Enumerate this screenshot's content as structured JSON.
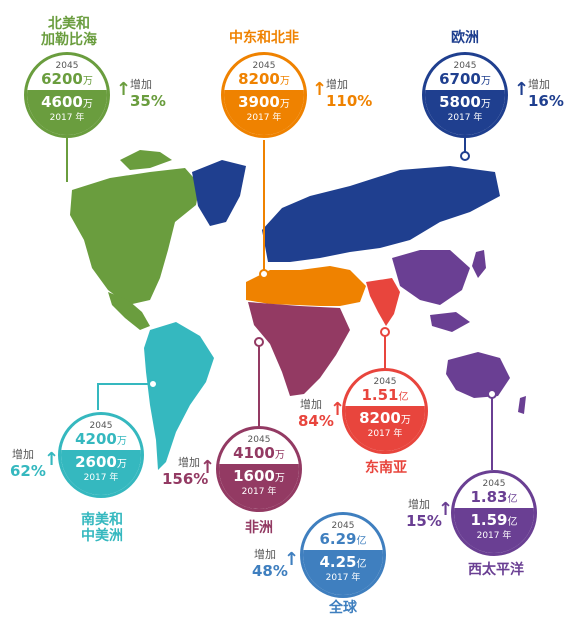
{
  "colors": {
    "north_america": "#6a9d3e",
    "middle_east": "#ef8200",
    "europe": "#1f3f8f",
    "south_america": "#35b8bf",
    "africa": "#933a63",
    "south_asia": "#e8453d",
    "pacific": "#6a3f93",
    "global": "#3f7fbf"
  },
  "common": {
    "year_2045": "2045",
    "year_2017": "2017 年",
    "growth_label": "增加"
  },
  "regions": {
    "north_america": {
      "name_line1": "北美和",
      "name_line2": "加勒比海",
      "val_2045": "6200",
      "unit_2045": "万",
      "val_2017": "4600",
      "unit_2017": "万",
      "growth": "35%"
    },
    "middle_east": {
      "name_line1": "中东和北非",
      "val_2045": "8200",
      "unit_2045": "万",
      "val_2017": "3900",
      "unit_2017": "万",
      "growth": "110%"
    },
    "europe": {
      "name_line1": "欧洲",
      "val_2045": "6700",
      "unit_2045": "万",
      "val_2017": "5800",
      "unit_2017": "万",
      "growth": "16%"
    },
    "south_america": {
      "name_line1": "南美和",
      "name_line2": "中美洲",
      "val_2045": "4200",
      "unit_2045": "万",
      "val_2017": "2600",
      "unit_2017": "万",
      "growth": "62%"
    },
    "africa": {
      "name_line1": "非洲",
      "val_2045": "4100",
      "unit_2045": "万",
      "val_2017": "1600",
      "unit_2017": "万",
      "growth": "156%"
    },
    "south_asia": {
      "name_line1": "东南亚",
      "val_2045": "1.51",
      "unit_2045": "亿",
      "val_2017": "8200",
      "unit_2017": "万",
      "growth": "84%"
    },
    "pacific": {
      "name_line1": "西太平洋",
      "val_2045": "1.83",
      "unit_2045": "亿",
      "val_2017": "1.59",
      "unit_2017": "亿",
      "growth": "15%"
    },
    "global": {
      "name_line1": "全球",
      "val_2045": "6.29",
      "unit_2045": "亿",
      "val_2017": "4.25",
      "unit_2017": "亿",
      "growth": "48%"
    }
  }
}
